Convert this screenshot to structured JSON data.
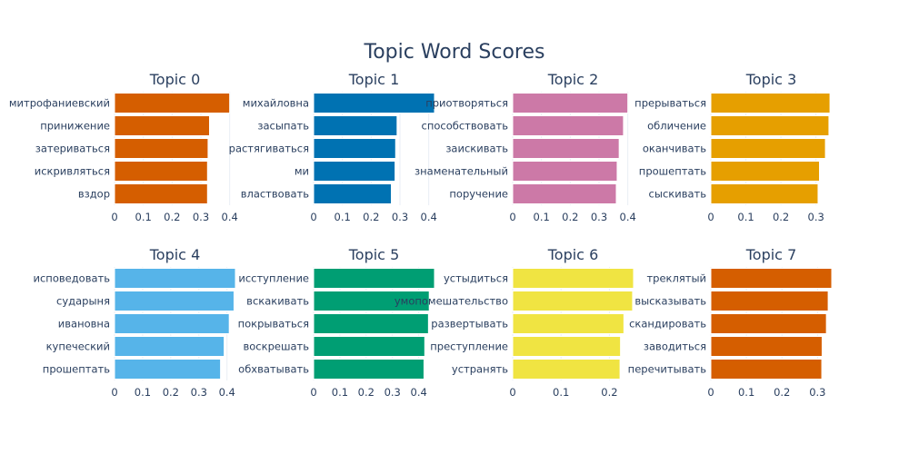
{
  "chart_data": {
    "type": "bar",
    "title": "Topic Word Scores",
    "orientation": "horizontal",
    "grid": true,
    "subplots": [
      {
        "title": "Topic 0",
        "color": "#D55E00",
        "xlim": [
          0,
          0.42
        ],
        "ticks": [
          0,
          0.1,
          0.2,
          0.3,
          0.4
        ],
        "categories": [
          "митрофаниевский",
          "принижение",
          "затериваться",
          "искривляться",
          "вздор"
        ],
        "values": [
          0.4,
          0.33,
          0.325,
          0.323,
          0.323
        ]
      },
      {
        "title": "Topic 1",
        "color": "#0072B2",
        "xlim": [
          0,
          0.42
        ],
        "ticks": [
          0,
          0.1,
          0.2,
          0.3,
          0.4
        ],
        "categories": [
          "михайловна",
          "засыпать",
          "растягиваться",
          "ми",
          "властвовать"
        ],
        "values": [
          0.42,
          0.29,
          0.285,
          0.283,
          0.27
        ]
      },
      {
        "title": "Topic 2",
        "color": "#CC79A7",
        "xlim": [
          0,
          0.42
        ],
        "ticks": [
          0,
          0.1,
          0.2,
          0.3,
          0.4
        ],
        "categories": [
          "приотворяться",
          "способствовать",
          "заискивать",
          "знаменательный",
          "поручение"
        ],
        "values": [
          0.4,
          0.385,
          0.37,
          0.363,
          0.36
        ]
      },
      {
        "title": "Topic 3",
        "color": "#E69F00",
        "xlim": [
          0,
          0.345
        ],
        "ticks": [
          0,
          0.1,
          0.2,
          0.3
        ],
        "categories": [
          "прерываться",
          "обличение",
          "оканчивать",
          "прошептать",
          "сыскивать"
        ],
        "values": [
          0.34,
          0.337,
          0.327,
          0.31,
          0.306
        ]
      },
      {
        "title": "Topic 4",
        "color": "#56B4E9",
        "xlim": [
          0,
          0.43
        ],
        "ticks": [
          0,
          0.1,
          0.2,
          0.3,
          0.4
        ],
        "categories": [
          "исповедовать",
          "сударыня",
          "ивановна",
          "купеческий",
          "прошептать"
        ],
        "values": [
          0.43,
          0.425,
          0.408,
          0.39,
          0.377
        ]
      },
      {
        "title": "Topic 5",
        "color": "#009E73",
        "xlim": [
          0,
          0.46
        ],
        "ticks": [
          0,
          0.1,
          0.2,
          0.3,
          0.4
        ],
        "categories": [
          "исступление",
          "вскакивать",
          "покрываться",
          "воскрешать",
          "обхватывать"
        ],
        "values": [
          0.46,
          0.44,
          0.437,
          0.423,
          0.42
        ]
      },
      {
        "title": "Topic 6",
        "color": "#F0E442",
        "xlim": [
          0,
          0.25
        ],
        "ticks": [
          0,
          0.1,
          0.2
        ],
        "categories": [
          "устыдиться",
          "умопомешательство",
          "развертывать",
          "преступление",
          "устранять"
        ],
        "values": [
          0.25,
          0.248,
          0.23,
          0.223,
          0.222
        ]
      },
      {
        "title": "Topic 7",
        "color": "#D55E00",
        "xlim": [
          0,
          0.34
        ],
        "ticks": [
          0,
          0.1,
          0.2,
          0.3
        ],
        "categories": [
          "треклятый",
          "высказывать",
          "скандировать",
          "заводиться",
          "перечитывать"
        ],
        "values": [
          0.34,
          0.33,
          0.325,
          0.313,
          0.312
        ]
      }
    ]
  }
}
